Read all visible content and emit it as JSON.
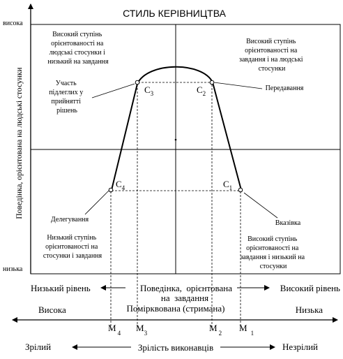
{
  "title": "СТИЛЬ КЕРІВНИЦТВА",
  "y_axis": {
    "label": "Поведінка, орієнтована на людські стосунки",
    "high": "висока",
    "low": "низька"
  },
  "quadrants": {
    "top_left": [
      "Високий ступінь",
      "орієнтованості на",
      "людські стосунки і",
      "низький на завдання"
    ],
    "top_right": [
      "Високий ступінь",
      "орієнтованості на",
      "завдання і на людські",
      "стосунки"
    ],
    "bottom_left": [
      "Низький ступінь",
      "орієнтованості на",
      "стосунки і завдання"
    ],
    "bottom_right": [
      "Високий ступінь",
      "орієнтованості на",
      "завдання і низький на",
      "стосунки"
    ]
  },
  "styles": {
    "participation": [
      "Участь",
      "підлеглих у",
      "прийнятті",
      "рішень"
    ],
    "delegating": "Делегування",
    "selling": "Передавання",
    "telling": "Вказівка"
  },
  "points": {
    "c1": {
      "letter": "C",
      "sub": "1"
    },
    "c2": {
      "letter": "C",
      "sub": "2"
    },
    "c3": {
      "letter": "C",
      "sub": "3"
    },
    "c4": {
      "letter": "C",
      "sub": "4"
    }
  },
  "task_axis": {
    "low": "Низький рівень",
    "label_line1": "Поведінка,  орієнтована",
    "label_line2": "на  завдання",
    "high": "Високий рівень"
  },
  "control_axis": {
    "left": "Висока",
    "middle": "Помірквована (стримана)",
    "right": "Низька"
  },
  "maturity": {
    "m4": {
      "letter": "M",
      "sub": "4"
    },
    "m3": {
      "letter": "M",
      "sub": "3"
    },
    "m2": {
      "letter": "M",
      "sub": "2"
    },
    "m1": {
      "letter": "M",
      "sub": "1"
    }
  },
  "maturity_axis": {
    "left": "Зрілий",
    "label": "Зрілість виконавців",
    "right": "Незрілий"
  }
}
